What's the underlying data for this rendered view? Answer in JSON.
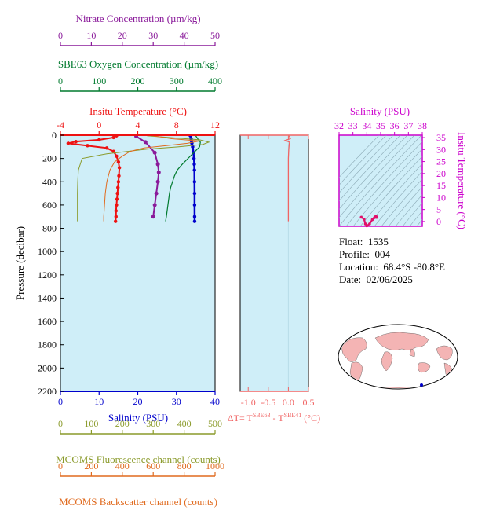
{
  "colors": {
    "panel_bg": "#cfeef8",
    "temperature": "#ee1111",
    "salinity": "#0000cc",
    "oxygen": "#007a2e",
    "nitrate": "#8a1a9a",
    "fluorescence": "#8a9a2a",
    "backscatter": "#e06a1e",
    "delta_t": "#f06464",
    "ts_axis": "#cc00cc"
  },
  "float_info": {
    "float_label": "Float:",
    "float_value": "1535",
    "profile_label": "Profile:",
    "profile_value": "004",
    "location_label": "Location:",
    "location_value": "68.4°S  -80.8°E",
    "date_label": "Date:",
    "date_value": "02/06/2025"
  },
  "chart_data": [
    {
      "type": "line",
      "panel": "main-profile",
      "ylabel": "Pressure (decibar)",
      "ylim": [
        2200,
        0
      ],
      "yticks": [
        "0",
        "200",
        "400",
        "600",
        "800",
        "1000",
        "1200",
        "1400",
        "1600",
        "1800",
        "2000",
        "2200"
      ],
      "axes": {
        "temperature": {
          "label": "Insitu Temperature (°C)",
          "ticks": [
            "-4",
            "0",
            "4",
            "8",
            "12"
          ],
          "range": [
            -4,
            12
          ]
        },
        "nitrate": {
          "label": "Nitrate Concentration (µm/kg)",
          "ticks": [
            "0",
            "10",
            "20",
            "30",
            "40",
            "50"
          ],
          "range": [
            0,
            50
          ]
        },
        "oxygen": {
          "label": "SBE63 Oxygen Concentration (µm/kg)",
          "ticks": [
            "0",
            "100",
            "200",
            "300",
            "400"
          ],
          "range": [
            0,
            400
          ]
        },
        "salinity": {
          "label": "Salinity (PSU)",
          "ticks": [
            "0",
            "10",
            "20",
            "30",
            "40"
          ],
          "range": [
            0,
            40
          ]
        },
        "fluorescence": {
          "label": "MCOMS Fluorescence channel (counts)",
          "ticks": [
            "0",
            "100",
            "200",
            "300",
            "400",
            "500"
          ],
          "range": [
            0,
            500
          ]
        },
        "backscatter": {
          "label": "MCOMS Backscatter channel (counts)",
          "ticks": [
            "0",
            "200",
            "400",
            "600",
            "800",
            "1000"
          ],
          "range": [
            0,
            1000
          ]
        }
      },
      "series": [
        {
          "key": "temperature",
          "pressure": [
            5,
            20,
            40,
            55,
            70,
            90,
            110,
            140,
            180,
            230,
            280,
            350,
            400,
            450,
            500,
            550,
            600,
            650,
            700,
            740
          ],
          "values": [
            1.8,
            1.5,
            0.0,
            -2.4,
            -3.2,
            -1.2,
            0.8,
            1.5,
            1.8,
            2.0,
            2.1,
            2.05,
            2.0,
            1.95,
            1.9,
            1.85,
            1.8,
            1.75,
            1.75,
            1.7
          ]
        },
        {
          "key": "salinity",
          "pressure": [
            5,
            30,
            50,
            70,
            100,
            150,
            200,
            250,
            300,
            400,
            500,
            600,
            700,
            740
          ],
          "values": [
            33.6,
            33.8,
            33.9,
            34.0,
            34.2,
            34.4,
            34.55,
            34.62,
            34.66,
            34.68,
            34.7,
            34.7,
            34.71,
            34.71
          ]
        },
        {
          "key": "oxygen",
          "pressure": [
            5,
            30,
            60,
            100,
            150,
            200,
            250,
            300,
            350,
            400,
            450,
            500,
            550,
            600,
            650,
            700,
            740
          ],
          "values": [
            350,
            355,
            362,
            360,
            345,
            330,
            315,
            302,
            295,
            290,
            285,
            282,
            280,
            278,
            276,
            274,
            272
          ]
        },
        {
          "key": "nitrate",
          "pressure": [
            10,
            60,
            150,
            250,
            320,
            400,
            500,
            600,
            700
          ],
          "values": [
            24.5,
            27.5,
            30.5,
            31.5,
            31.8,
            31.5,
            31.0,
            30.5,
            30.0
          ]
        },
        {
          "key": "fluorescence",
          "pressure": [
            5,
            40,
            60,
            80,
            100,
            120,
            160,
            200,
            300,
            400,
            500,
            600,
            700,
            740
          ],
          "values": [
            280,
            450,
            480,
            460,
            380,
            280,
            150,
            70,
            58,
            56,
            55,
            55,
            55,
            55
          ]
        },
        {
          "key": "backscatter",
          "pressure": [
            5,
            30,
            50,
            70,
            90,
            110,
            140,
            180,
            230,
            300,
            400,
            500,
            600,
            700,
            740
          ],
          "values": [
            600,
            720,
            900,
            820,
            680,
            540,
            450,
            400,
            350,
            320,
            300,
            290,
            285,
            280,
            280
          ]
        }
      ]
    },
    {
      "type": "line",
      "panel": "delta-t",
      "xlabel": "ΔT= T^SBE63 - T^SBE41 (°C)",
      "xlabel_parts": {
        "prefix": "ΔT= T",
        "sup1": "SBE63",
        "mid": " - T",
        "sup2": "SBE41",
        "suffix": " (°C)"
      },
      "xticks": [
        "-1.0",
        "-0.5",
        "0.0",
        "0.5"
      ],
      "xlim": [
        -1.2,
        0.5
      ],
      "ylim": [
        2200,
        0
      ],
      "pressure": [
        5,
        30,
        45,
        60,
        80,
        120,
        200,
        300,
        500,
        740
      ],
      "values": [
        0.02,
        0.05,
        -0.08,
        0.03,
        0.02,
        0.01,
        0.0,
        0.0,
        0.0,
        0.0
      ]
    },
    {
      "type": "scatter",
      "panel": "ts-diagram",
      "xlabel": "Salinity (PSU)",
      "ylabel": "Insitu Temperature (°C)",
      "xticks": [
        "32",
        "33",
        "34",
        "35",
        "36",
        "37",
        "38"
      ],
      "yticks": [
        "0",
        "5",
        "10",
        "15",
        "20",
        "25",
        "30",
        "35"
      ],
      "xlim": [
        32,
        38
      ],
      "ylim": [
        -2,
        36
      ],
      "salinity": [
        33.6,
        33.8,
        33.9,
        34.0,
        34.2,
        34.4,
        34.55,
        34.62,
        34.66,
        34.68,
        34.7,
        34.71
      ],
      "temperature": [
        1.8,
        1.0,
        -1.0,
        -1.8,
        -1.0,
        0.8,
        1.6,
        2.0,
        2.1,
        2.0,
        1.9,
        1.7
      ]
    }
  ]
}
